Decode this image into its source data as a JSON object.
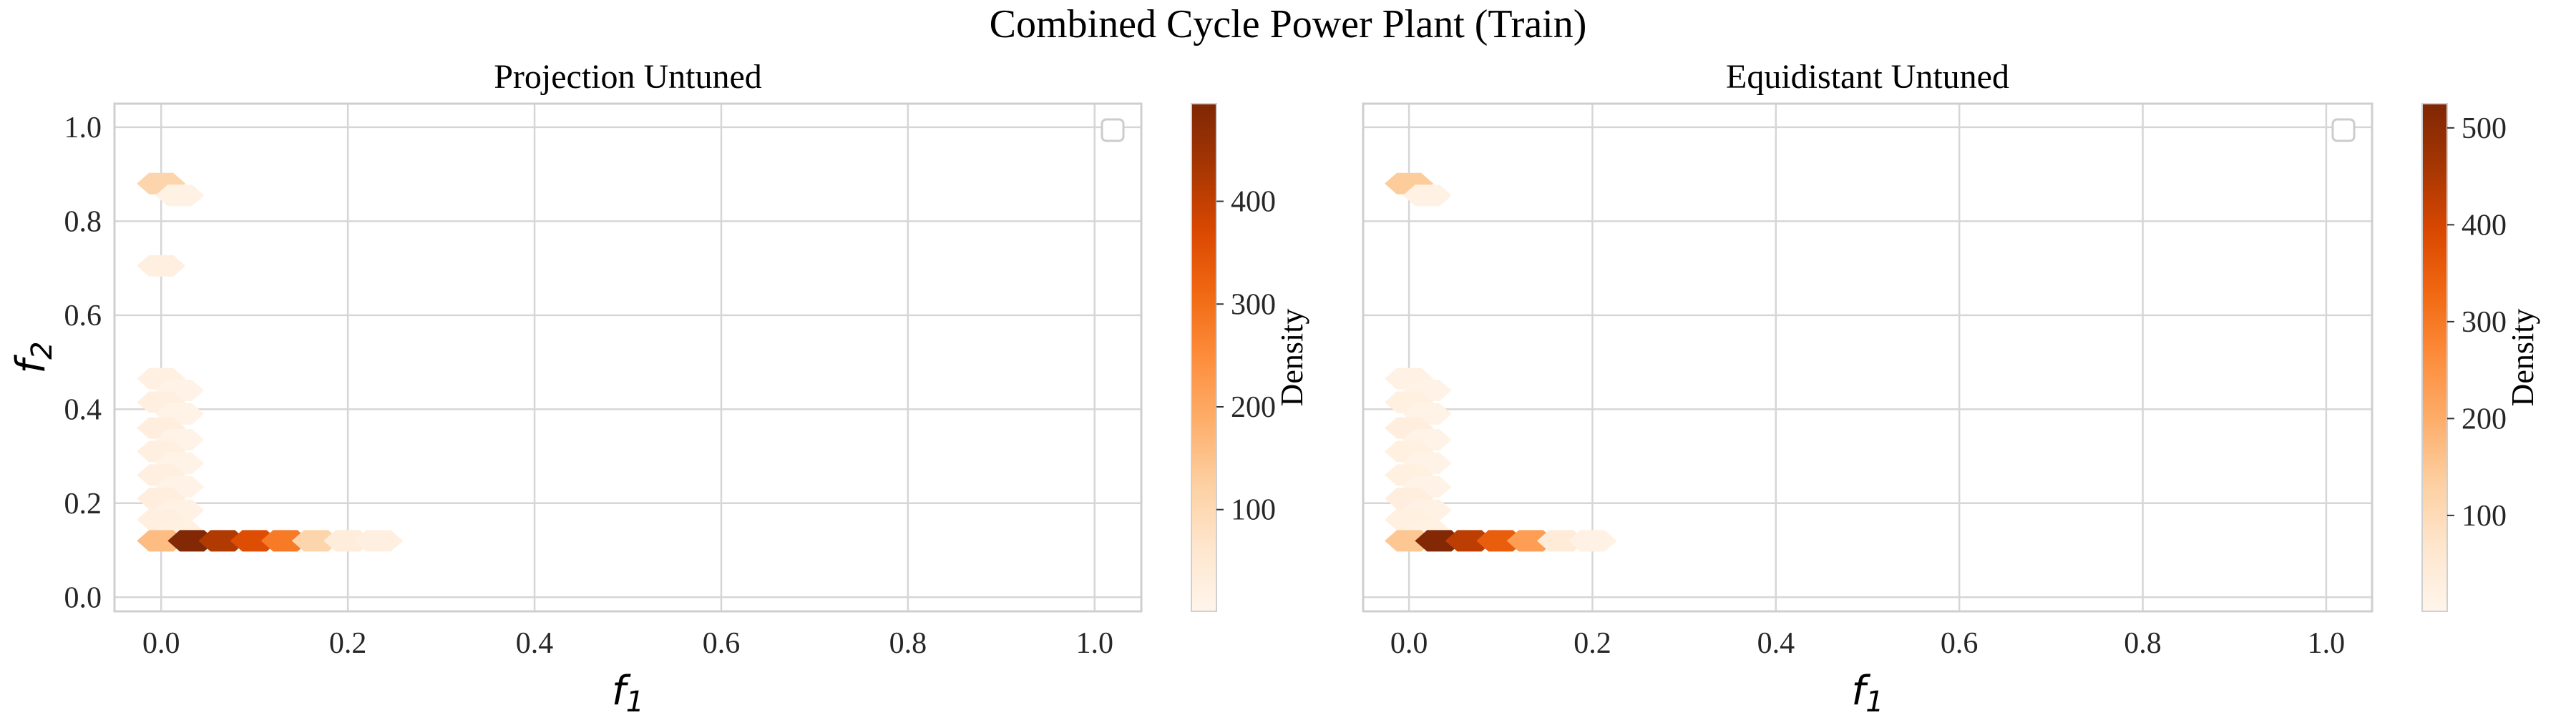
{
  "figure": {
    "title": "Combined Cycle Power Plant (Train)"
  },
  "chart_data": [
    {
      "type": "heatmap",
      "subtype": "hexbin",
      "title": "Projection Untuned",
      "xlabel": "f",
      "xlabel_sub": "1",
      "ylabel": "f",
      "ylabel_sub": "2",
      "xlim": [
        -0.05,
        1.05
      ],
      "ylim": [
        -0.03,
        1.05
      ],
      "xticks": [
        "0.0",
        "0.2",
        "0.4",
        "0.6",
        "0.8",
        "1.0"
      ],
      "yticks": [
        "0.0",
        "0.2",
        "0.4",
        "0.6",
        "0.8",
        "1.0"
      ],
      "grid": true,
      "legend": "top-right (empty)",
      "colormap": "Oranges",
      "colorbar": {
        "label": "Density",
        "range": [
          1,
          495
        ],
        "ticks": [
          "100",
          "200",
          "300",
          "400"
        ]
      },
      "cells": [
        {
          "x": 0.0,
          "y": 0.88,
          "count": 110
        },
        {
          "x": 0.02,
          "y": 0.855,
          "count": 15
        },
        {
          "x": 0.0,
          "y": 0.705,
          "count": 25
        },
        {
          "x": 0.0,
          "y": 0.465,
          "count": 20
        },
        {
          "x": 0.02,
          "y": 0.44,
          "count": 10
        },
        {
          "x": 0.0,
          "y": 0.415,
          "count": 25
        },
        {
          "x": 0.02,
          "y": 0.39,
          "count": 10
        },
        {
          "x": 0.0,
          "y": 0.36,
          "count": 30
        },
        {
          "x": 0.02,
          "y": 0.335,
          "count": 10
        },
        {
          "x": 0.0,
          "y": 0.31,
          "count": 25
        },
        {
          "x": 0.02,
          "y": 0.285,
          "count": 10
        },
        {
          "x": 0.0,
          "y": 0.26,
          "count": 25
        },
        {
          "x": 0.02,
          "y": 0.235,
          "count": 10
        },
        {
          "x": 0.0,
          "y": 0.21,
          "count": 30
        },
        {
          "x": 0.02,
          "y": 0.185,
          "count": 15
        },
        {
          "x": 0.0,
          "y": 0.165,
          "count": 25
        },
        {
          "x": 0.02,
          "y": 0.14,
          "count": 20
        },
        {
          "x": 0.0,
          "y": 0.12,
          "count": 160
        },
        {
          "x": 0.033,
          "y": 0.12,
          "count": 490
        },
        {
          "x": 0.066,
          "y": 0.12,
          "count": 420
        },
        {
          "x": 0.1,
          "y": 0.12,
          "count": 360
        },
        {
          "x": 0.133,
          "y": 0.12,
          "count": 280
        },
        {
          "x": 0.166,
          "y": 0.12,
          "count": 110
        },
        {
          "x": 0.2,
          "y": 0.12,
          "count": 35
        },
        {
          "x": 0.233,
          "y": 0.12,
          "count": 25
        }
      ]
    },
    {
      "type": "heatmap",
      "subtype": "hexbin",
      "title": "Equidistant Untuned",
      "xlabel": "f",
      "xlabel_sub": "1",
      "xlim": [
        -0.05,
        1.05
      ],
      "ylim": [
        -0.03,
        1.05
      ],
      "xticks": [
        "0.0",
        "0.2",
        "0.4",
        "0.6",
        "0.8",
        "1.0"
      ],
      "grid": true,
      "legend": "top-right (empty)",
      "colormap": "Oranges",
      "colorbar": {
        "label": "Density",
        "range": [
          1,
          525
        ],
        "ticks": [
          "100",
          "200",
          "300",
          "400",
          "500"
        ]
      },
      "cells": [
        {
          "x": 0.0,
          "y": 0.88,
          "count": 140
        },
        {
          "x": 0.02,
          "y": 0.855,
          "count": 20
        },
        {
          "x": 0.0,
          "y": 0.465,
          "count": 20
        },
        {
          "x": 0.02,
          "y": 0.44,
          "count": 10
        },
        {
          "x": 0.0,
          "y": 0.415,
          "count": 25
        },
        {
          "x": 0.02,
          "y": 0.39,
          "count": 10
        },
        {
          "x": 0.0,
          "y": 0.36,
          "count": 30
        },
        {
          "x": 0.02,
          "y": 0.335,
          "count": 10
        },
        {
          "x": 0.0,
          "y": 0.31,
          "count": 25
        },
        {
          "x": 0.02,
          "y": 0.285,
          "count": 10
        },
        {
          "x": 0.0,
          "y": 0.26,
          "count": 25
        },
        {
          "x": 0.02,
          "y": 0.235,
          "count": 10
        },
        {
          "x": 0.0,
          "y": 0.21,
          "count": 30
        },
        {
          "x": 0.02,
          "y": 0.185,
          "count": 15
        },
        {
          "x": 0.0,
          "y": 0.165,
          "count": 25
        },
        {
          "x": 0.02,
          "y": 0.14,
          "count": 20
        },
        {
          "x": 0.0,
          "y": 0.12,
          "count": 150
        },
        {
          "x": 0.033,
          "y": 0.12,
          "count": 520
        },
        {
          "x": 0.066,
          "y": 0.12,
          "count": 430
        },
        {
          "x": 0.1,
          "y": 0.12,
          "count": 350
        },
        {
          "x": 0.133,
          "y": 0.12,
          "count": 230
        },
        {
          "x": 0.166,
          "y": 0.12,
          "count": 45
        },
        {
          "x": 0.2,
          "y": 0.12,
          "count": 20
        }
      ]
    }
  ]
}
